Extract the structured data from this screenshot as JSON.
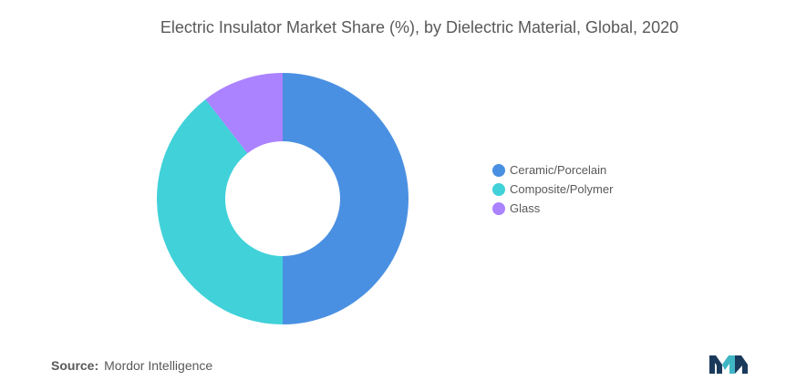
{
  "chart_data": {
    "type": "pie",
    "title": "Electric Insulator Market Share (%), by Dielectric Material, Global, 2020",
    "categories": [
      "Ceramic/Porcelain",
      "Composite/Polymer",
      "Glass"
    ],
    "values": [
      50,
      39.5,
      10.5
    ],
    "colors": [
      "#4a90e2",
      "#40d1d9",
      "#ab82ff"
    ],
    "start_angle_deg": 270,
    "legend_position": "right"
  },
  "source": {
    "prefix": "Source:",
    "text": "Mordor Intelligence"
  },
  "logo": {
    "icon": "mordor-intelligence-logo-icon",
    "colors": [
      "#1a3a5c",
      "#3fb6c4"
    ]
  }
}
